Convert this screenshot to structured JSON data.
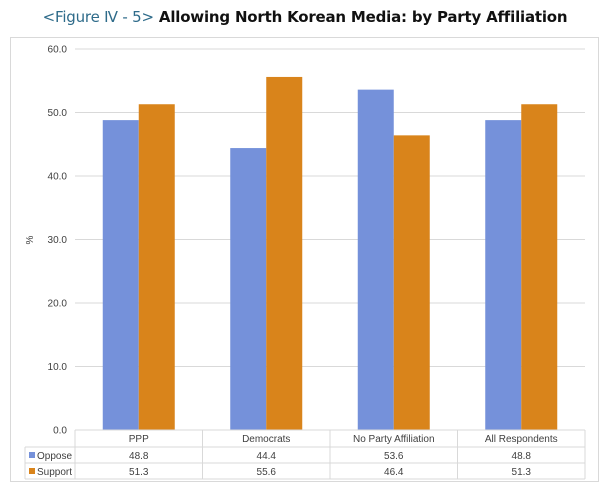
{
  "title": {
    "figure_label": "<Figure Ⅳ - 5>",
    "text": "Allowing North Korean Media: by Party Affiliation"
  },
  "chart_data": {
    "type": "bar",
    "title": "Allowing North Korean Media: by Party Affiliation",
    "xlabel": "",
    "ylabel": "%",
    "ylim": [
      0,
      60
    ],
    "yticks": [
      "0.0",
      "10.0",
      "20.0",
      "30.0",
      "40.0",
      "50.0",
      "60.0"
    ],
    "grid": true,
    "legend": "data-table-left",
    "categories": [
      "PPP",
      "Democrats",
      "No Party Affiliation",
      "All Respondents"
    ],
    "series": [
      {
        "name": "Oppose",
        "color": "#7591da",
        "values": [
          48.8,
          44.4,
          53.6,
          48.8
        ],
        "labels": [
          "48.8",
          "44.4",
          "53.6",
          "48.8"
        ]
      },
      {
        "name": "Support",
        "color": "#d9841b",
        "values": [
          51.3,
          55.6,
          46.4,
          51.3
        ],
        "labels": [
          "51.3",
          "55.6",
          "46.4",
          "51.3"
        ]
      }
    ]
  }
}
